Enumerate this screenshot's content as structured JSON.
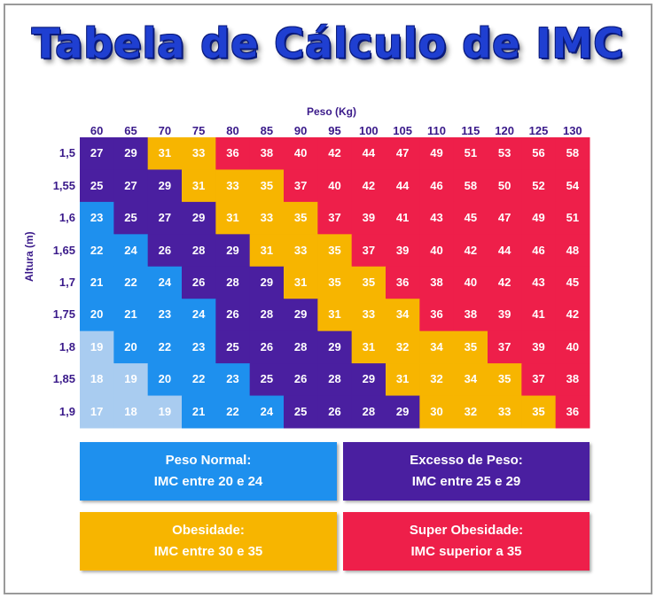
{
  "title": "Tabela de Cálculo de IMC",
  "colors": {
    "normal": "#1e90ee",
    "normal_light": "#a9ccf0",
    "excesso": "#4a1fa0",
    "obesidade": "#f7b500",
    "super": "#ee1f4a"
  },
  "chart_data": {
    "type": "table",
    "title": "Tabela de Cálculo de IMC",
    "xlabel": "Peso (Kg)",
    "ylabel": "Altura (m)",
    "x": [
      "60",
      "65",
      "70",
      "75",
      "80",
      "85",
      "90",
      "95",
      "100",
      "105",
      "110",
      "115",
      "120",
      "125",
      "130"
    ],
    "y": [
      "1,5",
      "1,55",
      "1,6",
      "1,65",
      "1,7",
      "1,75",
      "1,8",
      "1,85",
      "1,9"
    ],
    "values": [
      [
        27,
        29,
        31,
        33,
        36,
        38,
        40,
        42,
        44,
        47,
        49,
        51,
        53,
        56,
        58
      ],
      [
        25,
        27,
        29,
        31,
        33,
        35,
        37,
        40,
        42,
        44,
        46,
        58,
        50,
        52,
        54
      ],
      [
        23,
        25,
        27,
        29,
        31,
        33,
        35,
        37,
        39,
        41,
        43,
        45,
        47,
        49,
        51
      ],
      [
        22,
        24,
        26,
        28,
        29,
        31,
        33,
        35,
        37,
        39,
        40,
        42,
        44,
        46,
        48
      ],
      [
        21,
        22,
        24,
        26,
        28,
        29,
        31,
        35,
        35,
        36,
        38,
        40,
        42,
        43,
        45
      ],
      [
        20,
        21,
        23,
        24,
        26,
        28,
        29,
        31,
        33,
        34,
        36,
        38,
        39,
        41,
        42
      ],
      [
        19,
        20,
        22,
        23,
        25,
        26,
        28,
        29,
        31,
        32,
        34,
        35,
        37,
        39,
        40
      ],
      [
        18,
        19,
        20,
        22,
        23,
        25,
        26,
        28,
        29,
        31,
        32,
        34,
        35,
        37,
        38
      ],
      [
        17,
        18,
        19,
        21,
        22,
        24,
        25,
        26,
        28,
        29,
        30,
        32,
        33,
        35,
        36
      ]
    ]
  },
  "legend": [
    {
      "line1": "Peso Normal:",
      "line2": "IMC entre 20 e 24",
      "color": "#1e90ee"
    },
    {
      "line1": "Excesso de Peso:",
      "line2": "IMC entre 25 e 29",
      "color": "#4a1fa0"
    },
    {
      "line1": "Obesidade:",
      "line2": "IMC entre 30 e 35",
      "color": "#f7b500"
    },
    {
      "line1": "Super Obesidade:",
      "line2": "IMC superior a 35",
      "color": "#ee1f4a"
    }
  ]
}
